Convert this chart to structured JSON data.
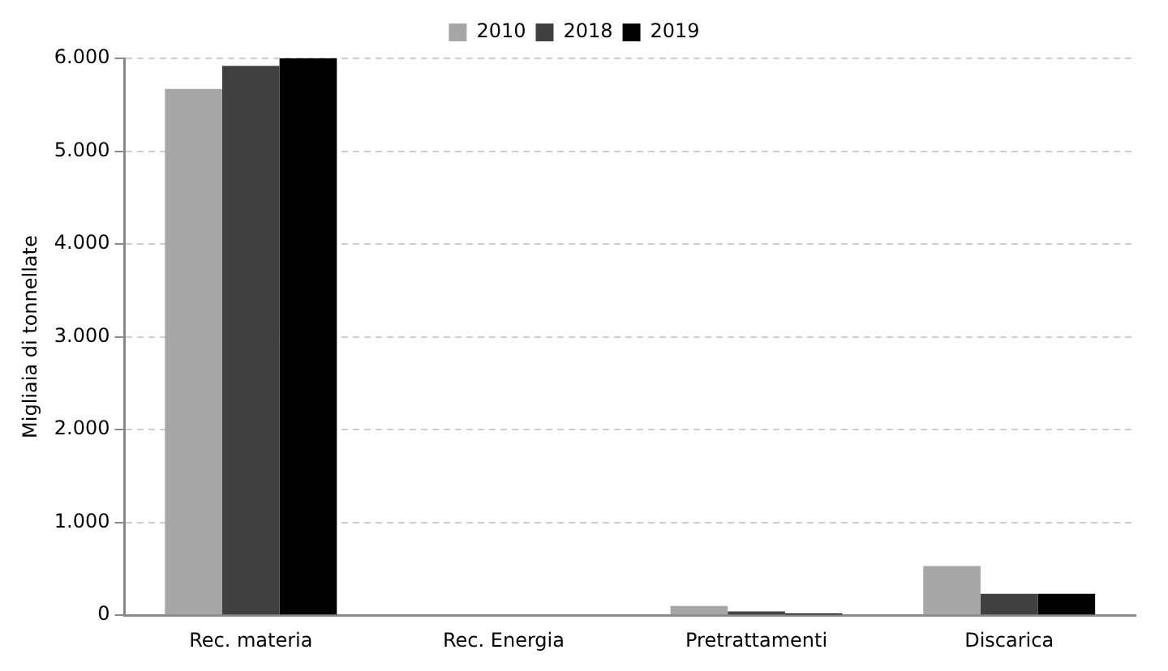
{
  "chart_data": {
    "type": "bar",
    "ylabel": "Migliaia di tonnellate",
    "categories": [
      "Rec. materia",
      "Rec. Energia",
      "Pretrattamenti",
      "Discarica"
    ],
    "series": [
      {
        "name": "2010",
        "color": "#a6a6a6",
        "values": [
          5670,
          null,
          100,
          530
        ]
      },
      {
        "name": "2018",
        "color": "#404040",
        "values": [
          5920,
          null,
          40,
          230
        ]
      },
      {
        "name": "2019",
        "color": "#000000",
        "values": [
          6000,
          null,
          20,
          230
        ]
      }
    ],
    "ylim": [
      0,
      6000
    ],
    "yticks": [
      {
        "value": 0,
        "label": "0"
      },
      {
        "value": 1000,
        "label": "1.000"
      },
      {
        "value": 2000,
        "label": "2.000"
      },
      {
        "value": 3000,
        "label": "3.000"
      },
      {
        "value": 4000,
        "label": "4.000"
      },
      {
        "value": 5000,
        "label": "5.000"
      },
      {
        "value": 6000,
        "label": "6.000"
      }
    ],
    "grid": "y",
    "legend": "top"
  }
}
